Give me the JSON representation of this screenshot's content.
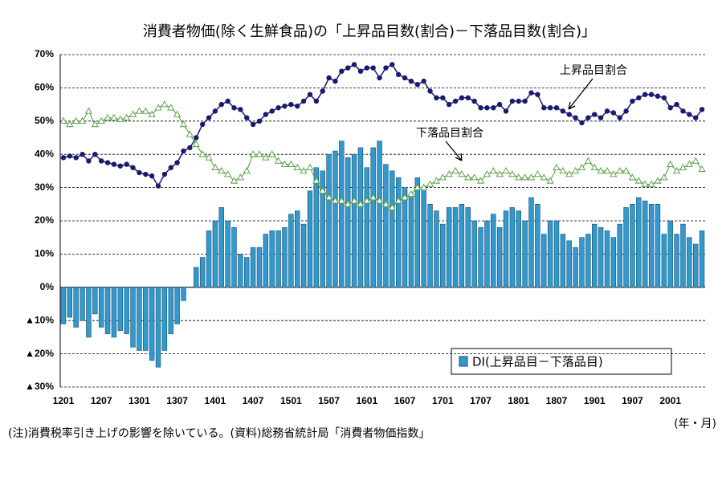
{
  "chart_data": {
    "type": "combo",
    "title": "消費者物価(除く生鮮食品)の「上昇品目数(割合)－下落品目数(割合)」",
    "note": "(注)消費税率引き上げの影響を除いている。(資料)総務省統計局「消費者物価指数」",
    "x_label": "(年・月)",
    "categories": [
      "1201",
      null,
      null,
      null,
      null,
      null,
      "1207",
      null,
      null,
      null,
      null,
      null,
      "1301",
      null,
      null,
      null,
      null,
      null,
      "1307",
      null,
      null,
      null,
      null,
      null,
      "1401",
      null,
      null,
      null,
      null,
      null,
      "1407",
      null,
      null,
      null,
      null,
      null,
      "1501",
      null,
      null,
      null,
      null,
      null,
      "1507",
      null,
      null,
      null,
      null,
      null,
      "1601",
      null,
      null,
      null,
      null,
      null,
      "1607",
      null,
      null,
      null,
      null,
      null,
      "1701",
      null,
      null,
      null,
      null,
      null,
      "1707",
      null,
      null,
      null,
      null,
      null,
      "1801",
      null,
      null,
      null,
      null,
      null,
      "1807",
      null,
      null,
      null,
      null,
      null,
      "1901",
      null,
      null,
      null,
      null,
      null,
      "1907",
      null,
      null,
      null,
      null,
      null,
      "2001",
      null,
      null,
      null,
      null,
      null
    ],
    "ylim": [
      -30,
      70
    ],
    "yticks": [
      {
        "value": 70,
        "label": "70%"
      },
      {
        "value": 60,
        "label": "60%"
      },
      {
        "value": 50,
        "label": "50%"
      },
      {
        "value": 40,
        "label": "40%"
      },
      {
        "value": 30,
        "label": "30%"
      },
      {
        "value": 20,
        "label": "20%"
      },
      {
        "value": 10,
        "label": "10%"
      },
      {
        "value": 0,
        "label": "0%"
      },
      {
        "value": -10,
        "label": "▲10%"
      },
      {
        "value": -20,
        "label": "▲20%"
      },
      {
        "value": -30,
        "label": "▲30%"
      }
    ],
    "grid": true,
    "annotations": [
      {
        "text": "上昇品目割合",
        "series": 1
      },
      {
        "text": "下落品目割合",
        "series": 2
      }
    ],
    "series": [
      {
        "name": "DI(上昇品目－下落品目)",
        "type": "bar",
        "color": "#3399cc",
        "values": [
          -11,
          -9,
          -12,
          -10,
          -15,
          -8,
          -12,
          -14,
          -15,
          -13,
          -14,
          -18,
          -19,
          -19,
          -22,
          -24,
          -19,
          -14,
          -11,
          -4,
          0,
          6,
          9,
          17,
          20,
          24,
          20,
          18,
          10,
          9,
          12,
          12,
          16,
          17,
          17,
          18,
          22,
          23,
          19,
          29,
          36,
          35,
          40,
          41,
          44,
          39,
          40,
          42,
          36,
          42,
          44,
          37,
          35,
          33,
          30,
          28,
          33,
          29,
          25,
          23,
          19,
          24,
          24,
          25,
          24,
          20,
          18,
          20,
          22,
          18,
          23,
          24,
          23,
          20,
          27,
          25,
          16,
          20,
          20,
          16,
          14,
          12,
          15,
          16,
          19,
          18,
          17,
          15,
          19,
          24,
          25,
          27,
          26,
          25,
          25,
          16,
          20,
          16,
          19,
          15,
          13,
          17
        ]
      },
      {
        "name": "上昇品目割合",
        "type": "line",
        "marker": "circle",
        "color": "#1a1a6e",
        "values": [
          39,
          39.5,
          39,
          40,
          38,
          40,
          38,
          37.5,
          37,
          36.5,
          37,
          36,
          34.5,
          34,
          33.5,
          30.5,
          34,
          36,
          37.5,
          41,
          42,
          45,
          49,
          51,
          53,
          55,
          56,
          54,
          53.5,
          51,
          49,
          50,
          52,
          53,
          54,
          54.5,
          55,
          54.5,
          56,
          58,
          56,
          59,
          63,
          62,
          65,
          66,
          67,
          65,
          66,
          66,
          63,
          66,
          67,
          64,
          63,
          62,
          61,
          62,
          59,
          57,
          57,
          55,
          56,
          57,
          57,
          56,
          54,
          54,
          54,
          55,
          53,
          56,
          56,
          56,
          58.5,
          58,
          54,
          54,
          54,
          53,
          52,
          51,
          49.5,
          51,
          52,
          51,
          53,
          52.5,
          51,
          53,
          56,
          57,
          58,
          58,
          57.5,
          57,
          54,
          55,
          53,
          52,
          51,
          53.5
        ]
      },
      {
        "name": "下落品目割合",
        "type": "line",
        "marker": "triangle",
        "color": "#4f9a3c",
        "values": [
          50,
          49,
          50,
          50,
          53,
          49,
          50,
          51,
          51,
          50.5,
          51,
          52,
          53,
          53,
          52,
          54,
          55,
          54,
          52,
          49,
          46,
          43,
          40,
          39,
          36,
          35,
          34,
          32,
          33,
          35,
          40,
          40,
          39,
          40,
          38,
          37,
          37,
          36,
          35,
          36,
          32,
          29,
          27,
          26,
          26,
          25,
          26,
          25,
          26,
          27,
          26,
          25,
          24,
          26,
          27,
          28,
          30,
          30,
          31,
          32,
          33,
          34,
          35,
          34,
          33,
          33,
          32,
          34,
          35,
          34,
          35,
          34,
          33,
          33,
          33,
          34,
          33,
          32,
          36,
          35,
          34,
          35,
          36,
          38,
          36,
          35,
          35,
          34,
          35,
          35,
          33,
          32,
          31,
          31,
          32,
          33,
          37,
          35,
          36,
          37,
          38,
          35.5
        ]
      }
    ]
  }
}
